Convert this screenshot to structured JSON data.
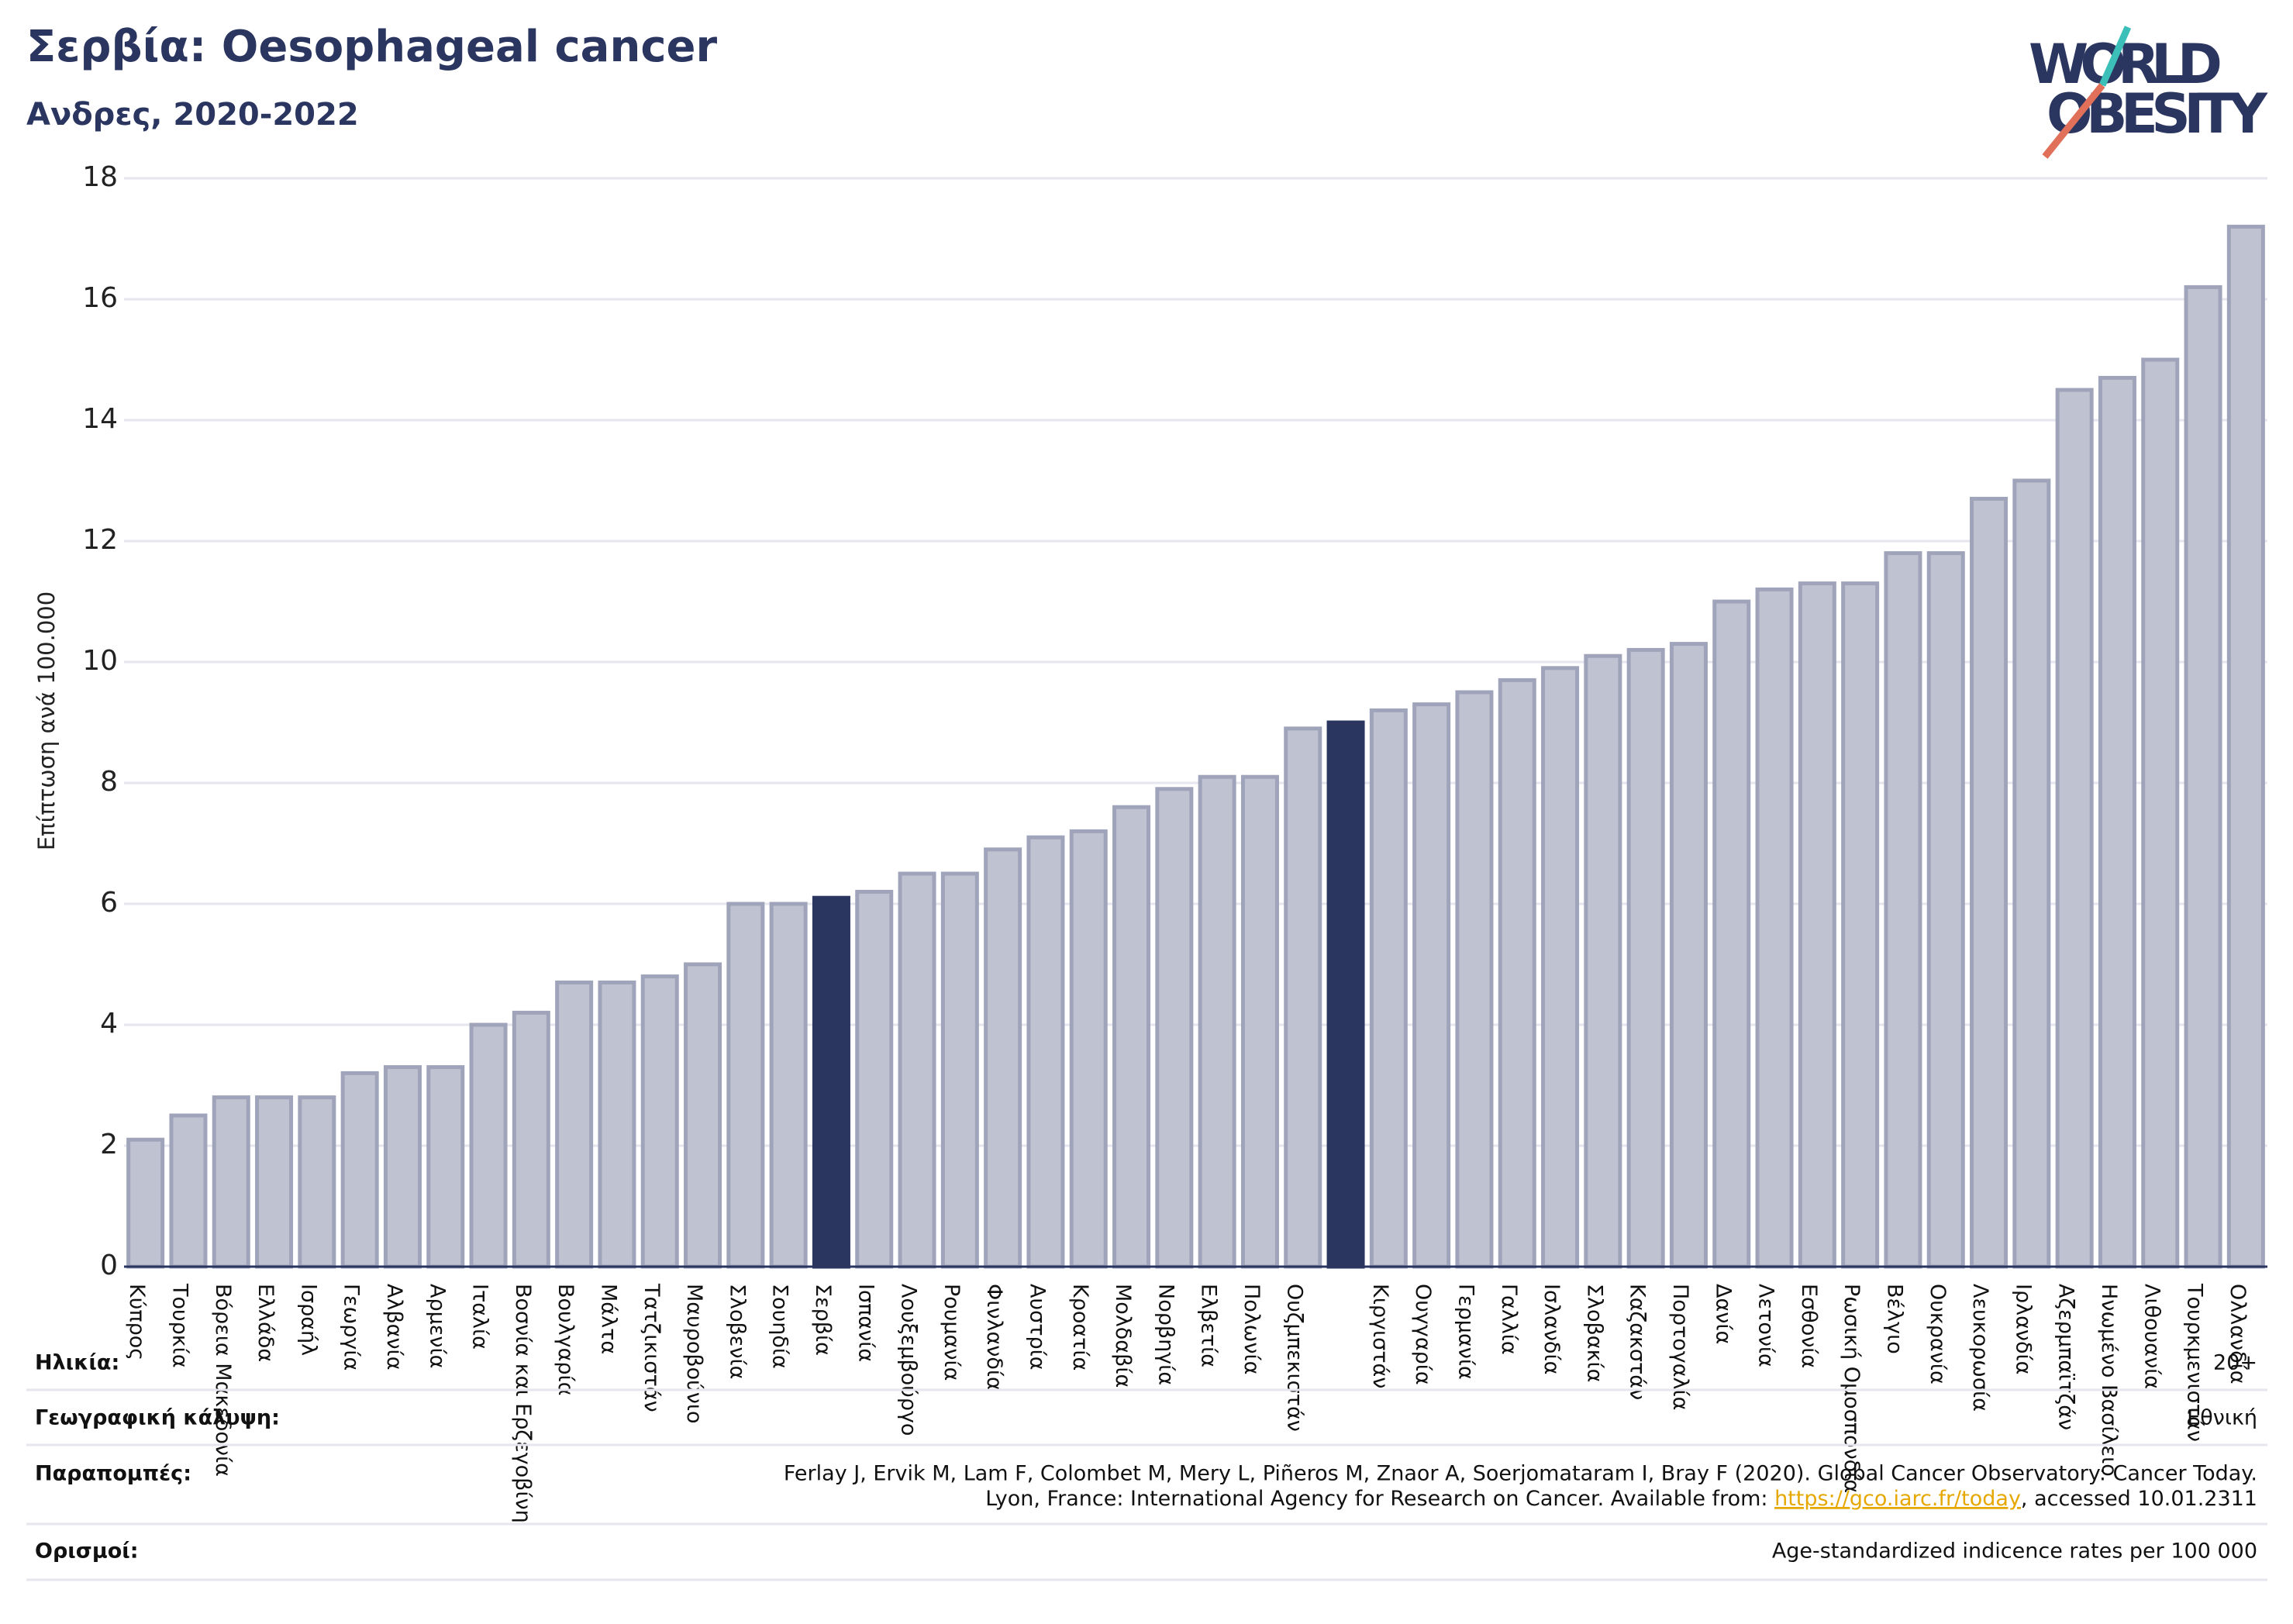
{
  "chart_data": {
    "type": "bar",
    "title": "Σερβία: Oesophageal cancer",
    "subtitle": "Ανδρες, 2020-2022",
    "y_label": "Επίπτωση ανά 100.000",
    "categories": [
      "Κύπρος",
      "Τουρκία",
      "Βόρεια Μακεδονία",
      "Ελλάδα",
      "Ισραήλ",
      "Γεωργία",
      "Αλβανία",
      "Αρμενία",
      "Ιταλία",
      "Βοσνία και Ερζεγοβίνη",
      "Βουλγαρία",
      "Μάλτα",
      "Τατζικιστάν",
      "Μαυροβούνιο",
      "Σλοβενία",
      "Σουηδία",
      "Σερβία",
      "Ισπανία",
      "Λουξεμβούργο",
      "Ρουμανία",
      "Φινλανδία",
      "Αυστρία",
      "Κροατία",
      "Μολδαβία",
      "Νορβηγία",
      "Ελβετία",
      "Πολωνία",
      "Ουζμπεκιστάν",
      null,
      "Κιργιστάν",
      "Ουγγαρία",
      "Γερμανία",
      "Γαλλία",
      "Ισλανδία",
      "Σλοβακία",
      "Καζακστάν",
      "Πορτογαλία",
      "Δανία",
      "Λετονία",
      "Εσθονία",
      "Ρωσική Ομοσπονδία",
      "Βέλγιο",
      "Ουκρανία",
      "Λευκορωσία",
      "Ιρλανδία",
      "Αζερμπαϊτζάν",
      "Ηνωμένο Βασίλειο",
      "Λιθουανία",
      "Τουρκμενιστάν",
      "Ολλανδία"
    ],
    "values": [
      2.1,
      2.5,
      2.8,
      2.8,
      2.8,
      3.2,
      3.3,
      3.3,
      4.0,
      4.2,
      4.7,
      4.7,
      4.8,
      5.0,
      6.0,
      6.0,
      6.1,
      6.2,
      6.5,
      6.5,
      6.9,
      7.1,
      7.2,
      7.6,
      7.9,
      8.1,
      8.1,
      8.9,
      9.0,
      9.2,
      9.3,
      9.5,
      9.7,
      9.9,
      10.1,
      10.2,
      10.3,
      11.0,
      11.2,
      11.3,
      11.3,
      11.8,
      11.8,
      12.7,
      13.0,
      14.5,
      14.7,
      15.0,
      16.2,
      17.2
    ],
    "color": "#bfc2d0",
    "highlight_color": "#2a3560",
    "highlight": [
      16,
      28
    ],
    "ylim": [
      0,
      18
    ],
    "yticks": [
      0,
      2,
      4,
      6,
      8,
      10,
      12,
      14,
      16,
      18
    ],
    "grid": true
  },
  "logo": {
    "line1": "WORLD",
    "line2": "OBESITY"
  },
  "footer": [
    {
      "label": "Ηλικία:",
      "value": [
        "20+"
      ]
    },
    {
      "label": "Γεωγραφική κάλυψη:",
      "value": [
        "Εθνική"
      ]
    },
    {
      "label": "Παραπομπές:",
      "value": [
        "Ferlay J, Ervik M, Lam F, Colombet M, Mery L, Piñeros M, Znaor A, Soerjomataram I, Bray F (2020). Global Cancer Observatory: Cancer Today.",
        "Lyon, France: International Agency for Research on Cancer. Available from: ",
        "https://gco.iarc.fr/today",
        ", accessed 10.01.2311"
      ]
    },
    {
      "label": "Ορισμοί:",
      "value": [
        "Age-standardized indicence rates per 100 000"
      ]
    }
  ]
}
